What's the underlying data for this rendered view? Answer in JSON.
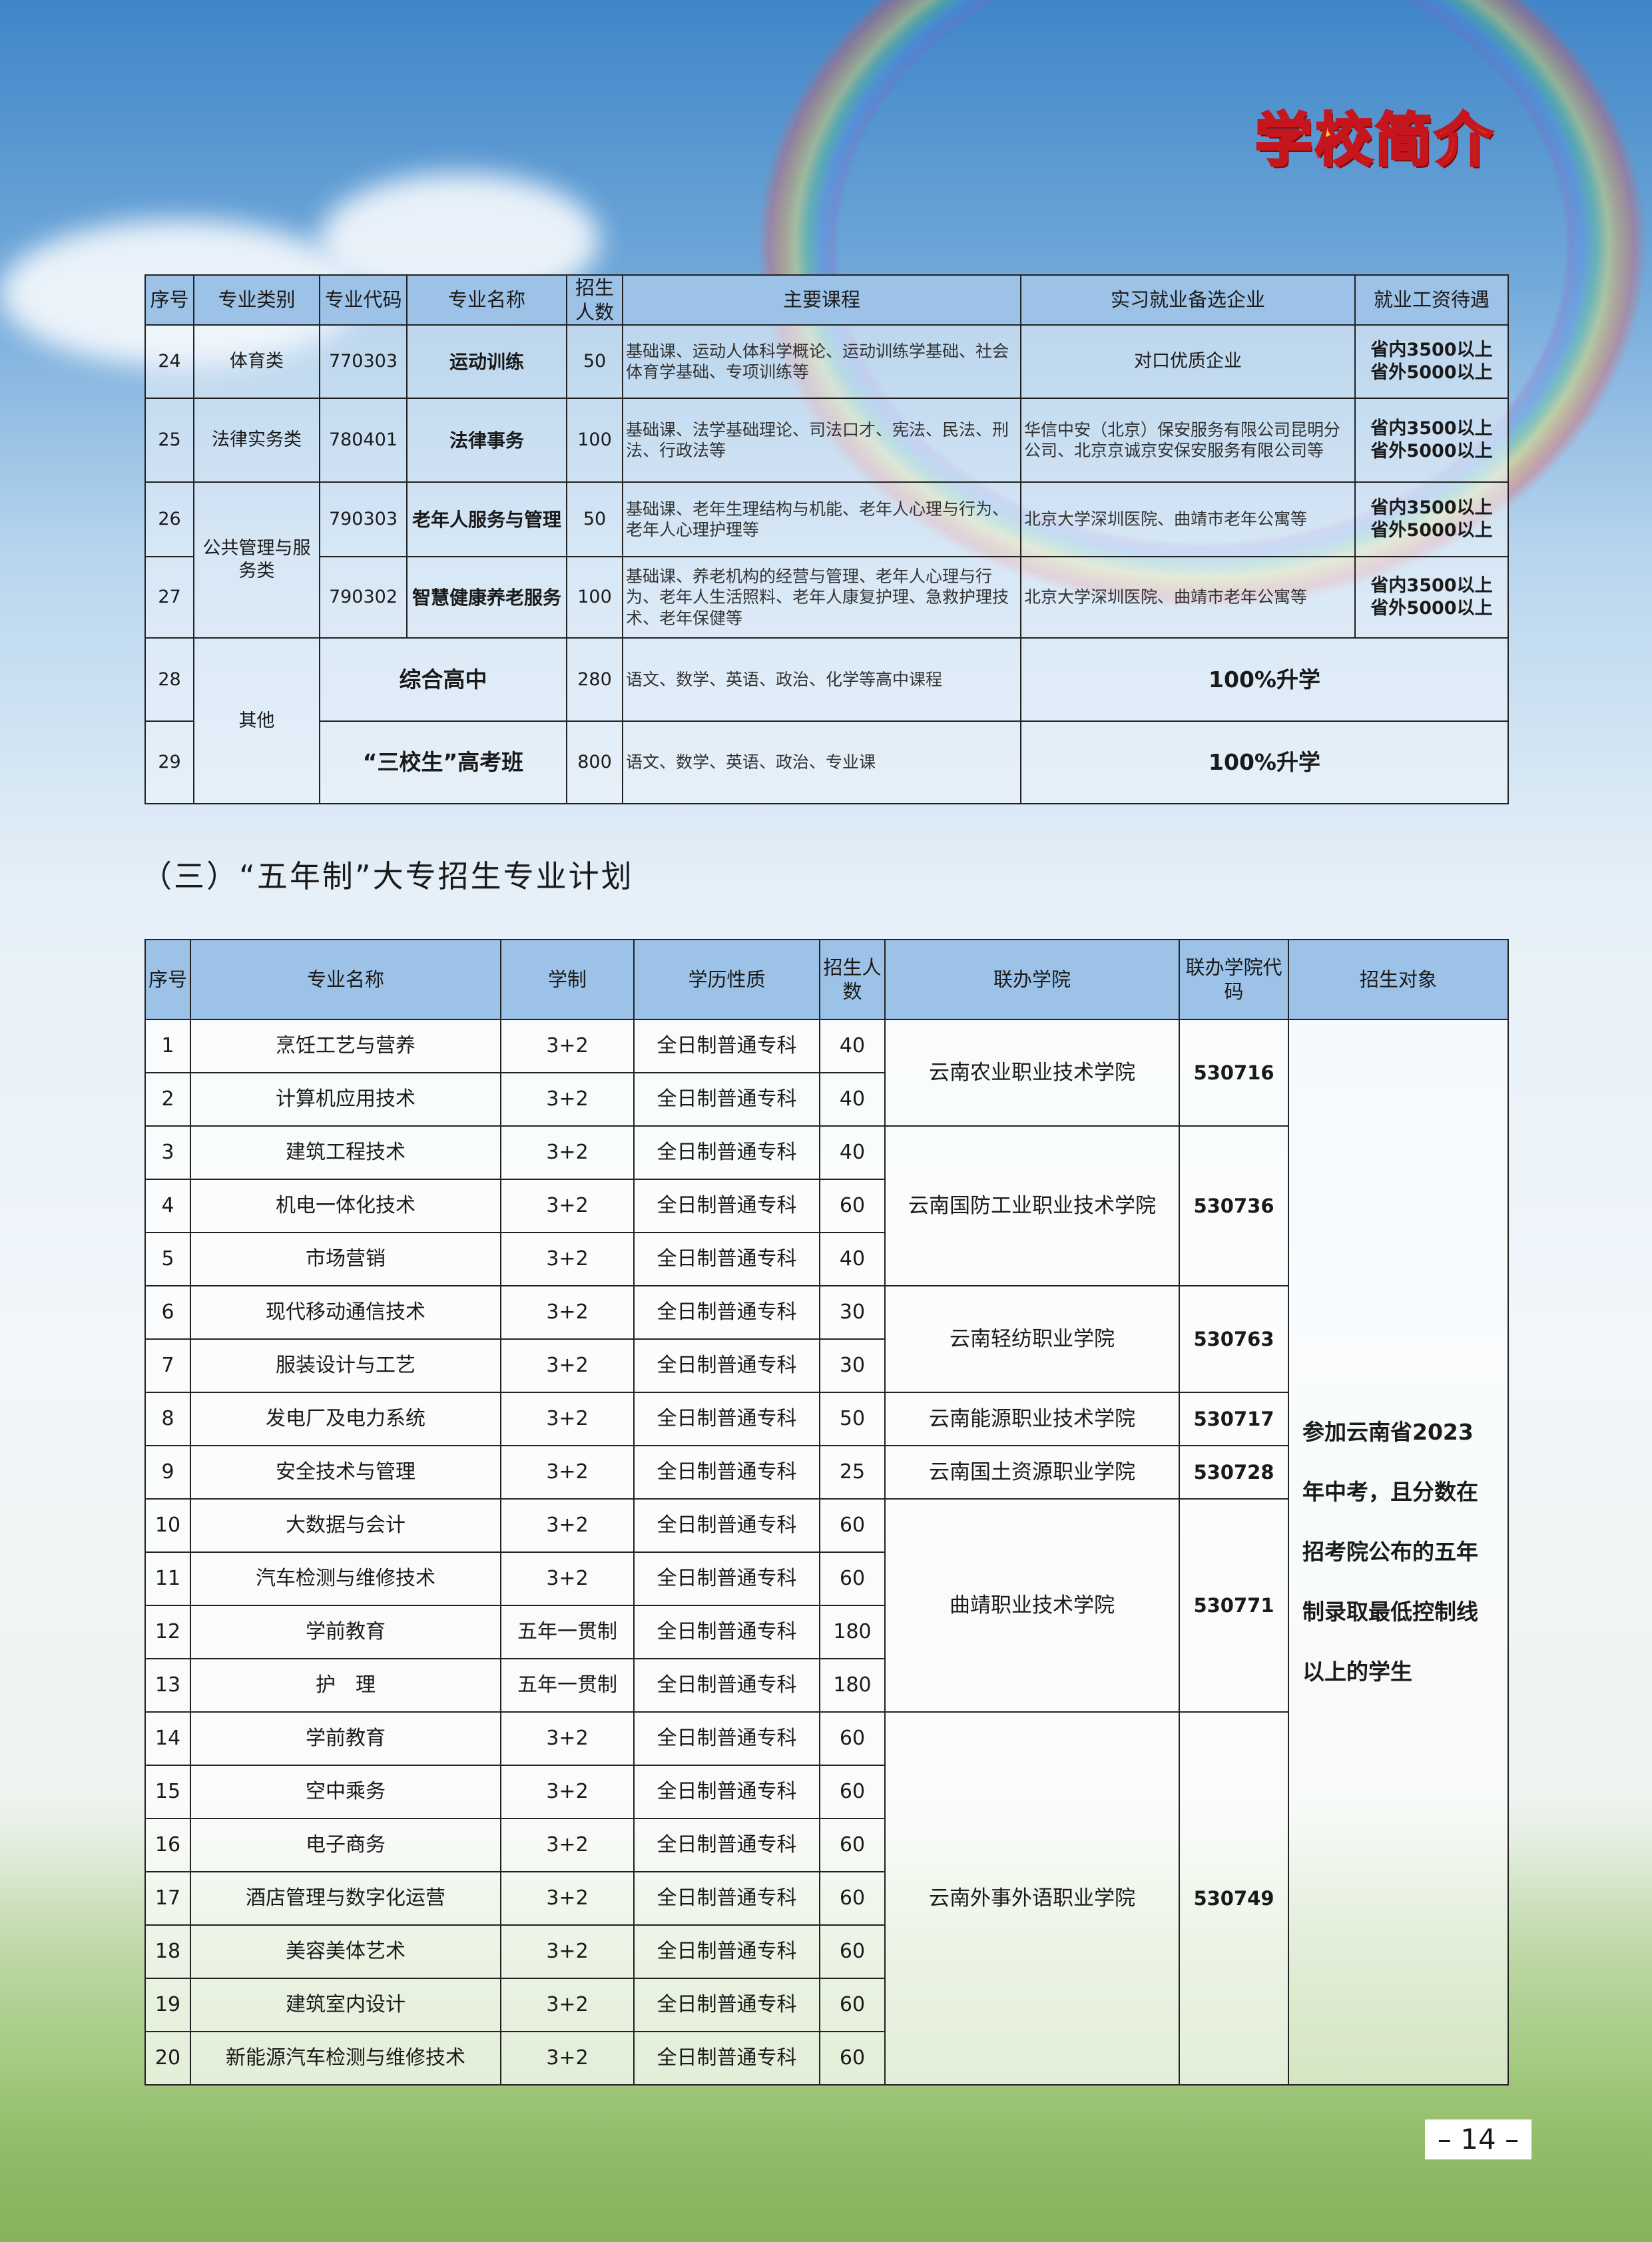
{
  "header": {
    "title": "学校简介"
  },
  "table1": {
    "headers": [
      "序号",
      "专业类别",
      "专业代码",
      "专业名称",
      "招生人数",
      "主要课程",
      "实习就业备选企业",
      "就业工资待遇"
    ],
    "rows": [
      {
        "no": "24",
        "category": "体育类",
        "code": "770303",
        "name": "运动训练",
        "count": "50",
        "courses": "基础课、运动人体科学概论、运动训练学基础、社会体育学基础、专项训练等",
        "firms": "对口优质企业",
        "salary": "省内3500以上 省外5000以上"
      },
      {
        "no": "25",
        "category": "法律实务类",
        "code": "780401",
        "name": "法律事务",
        "count": "100",
        "courses": "基础课、法学基础理论、司法口才、宪法、民法、刑法、行政法等",
        "firms": "华信中安（北京）保安服务有限公司昆明分公司、北京京诚京安保安服务有限公司等",
        "salary": "省内3500以上 省外5000以上"
      },
      {
        "no": "26",
        "category": "公共管理与服务类",
        "code": "790303",
        "name": "老年人服务与管理",
        "count": "50",
        "courses": "基础课、老年生理结构与机能、老年人心理与行为、老年人心理护理等",
        "firms": "北京大学深圳医院、曲靖市老年公寓等",
        "salary": "省内3500以上 省外5000以上"
      },
      {
        "no": "27",
        "code": "790302",
        "name": "智慧健康养老服务",
        "count": "100",
        "courses": "基础课、养老机构的经营与管理、老年人心理与行为、老年人生活照料、老年人康复护理、急救护理技术、老年保健等",
        "firms": "北京大学深圳医院、曲靖市老年公寓等",
        "salary": "省内3500以上 省外5000以上"
      },
      {
        "no": "28",
        "category": "其他",
        "name": "综合高中",
        "count": "280",
        "courses": "语文、数学、英语、政治、化学等高中课程",
        "outcome": "100%升学"
      },
      {
        "no": "29",
        "name": "“三校生”高考班",
        "count": "800",
        "courses": "语文、数学、英语、政治、专业课",
        "outcome": "100%升学"
      }
    ]
  },
  "section_title": "（三）“五年制”大专招生专业计划",
  "table2": {
    "headers": [
      "序号",
      "专业名称",
      "学制",
      "学历性质",
      "招生人数",
      "联办学院",
      "联办学院代码",
      "招生对象"
    ],
    "target": "参加云南省2023年中考，且分数在招考院公布的五年制录取最低控制线以上的学生",
    "colleges": [
      {
        "name": "云南农业职业技术学院",
        "code": "530716",
        "span": 2
      },
      {
        "name": "云南国防工业职业技术学院",
        "code": "530736",
        "span": 3
      },
      {
        "name": "云南轻纺职业学院",
        "code": "530763",
        "span": 2
      },
      {
        "name": "云南能源职业技术学院",
        "code": "530717",
        "span": 1
      },
      {
        "name": "云南国土资源职业学院",
        "code": "530728",
        "span": 1
      },
      {
        "name": "曲靖职业技术学院",
        "code": "530771",
        "span": 4
      },
      {
        "name": "云南外事外语职业学院",
        "code": "530749",
        "span": 7
      }
    ],
    "rows": [
      {
        "no": "1",
        "name": "烹饪工艺与营养",
        "system": "3+2",
        "type": "全日制普通专科",
        "count": "40"
      },
      {
        "no": "2",
        "name": "计算机应用技术",
        "system": "3+2",
        "type": "全日制普通专科",
        "count": "40"
      },
      {
        "no": "3",
        "name": "建筑工程技术",
        "system": "3+2",
        "type": "全日制普通专科",
        "count": "40"
      },
      {
        "no": "4",
        "name": "机电一体化技术",
        "system": "3+2",
        "type": "全日制普通专科",
        "count": "60"
      },
      {
        "no": "5",
        "name": "市场营销",
        "system": "3+2",
        "type": "全日制普通专科",
        "count": "40"
      },
      {
        "no": "6",
        "name": "现代移动通信技术",
        "system": "3+2",
        "type": "全日制普通专科",
        "count": "30"
      },
      {
        "no": "7",
        "name": "服装设计与工艺",
        "system": "3+2",
        "type": "全日制普通专科",
        "count": "30"
      },
      {
        "no": "8",
        "name": "发电厂及电力系统",
        "system": "3+2",
        "type": "全日制普通专科",
        "count": "50"
      },
      {
        "no": "9",
        "name": "安全技术与管理",
        "system": "3+2",
        "type": "全日制普通专科",
        "count": "25"
      },
      {
        "no": "10",
        "name": "大数据与会计",
        "system": "3+2",
        "type": "全日制普通专科",
        "count": "60"
      },
      {
        "no": "11",
        "name": "汽车检测与维修技术",
        "system": "3+2",
        "type": "全日制普通专科",
        "count": "60"
      },
      {
        "no": "12",
        "name": "学前教育",
        "system": "五年一贯制",
        "type": "全日制普通专科",
        "count": "180"
      },
      {
        "no": "13",
        "name": "护　理",
        "system": "五年一贯制",
        "type": "全日制普通专科",
        "count": "180"
      },
      {
        "no": "14",
        "name": "学前教育",
        "system": "3+2",
        "type": "全日制普通专科",
        "count": "60"
      },
      {
        "no": "15",
        "name": "空中乘务",
        "system": "3+2",
        "type": "全日制普通专科",
        "count": "60"
      },
      {
        "no": "16",
        "name": "电子商务",
        "system": "3+2",
        "type": "全日制普通专科",
        "count": "60"
      },
      {
        "no": "17",
        "name": "酒店管理与数字化运营",
        "system": "3+2",
        "type": "全日制普通专科",
        "count": "60"
      },
      {
        "no": "18",
        "name": "美容美体艺术",
        "system": "3+2",
        "type": "全日制普通专科",
        "count": "60"
      },
      {
        "no": "19",
        "name": "建筑室内设计",
        "system": "3+2",
        "type": "全日制普通专科",
        "count": "60"
      },
      {
        "no": "20",
        "name": "新能源汽车检测与维修技术",
        "system": "3+2",
        "type": "全日制普通专科",
        "count": "60"
      }
    ]
  },
  "footer": {
    "page_number": "– 14 –"
  }
}
